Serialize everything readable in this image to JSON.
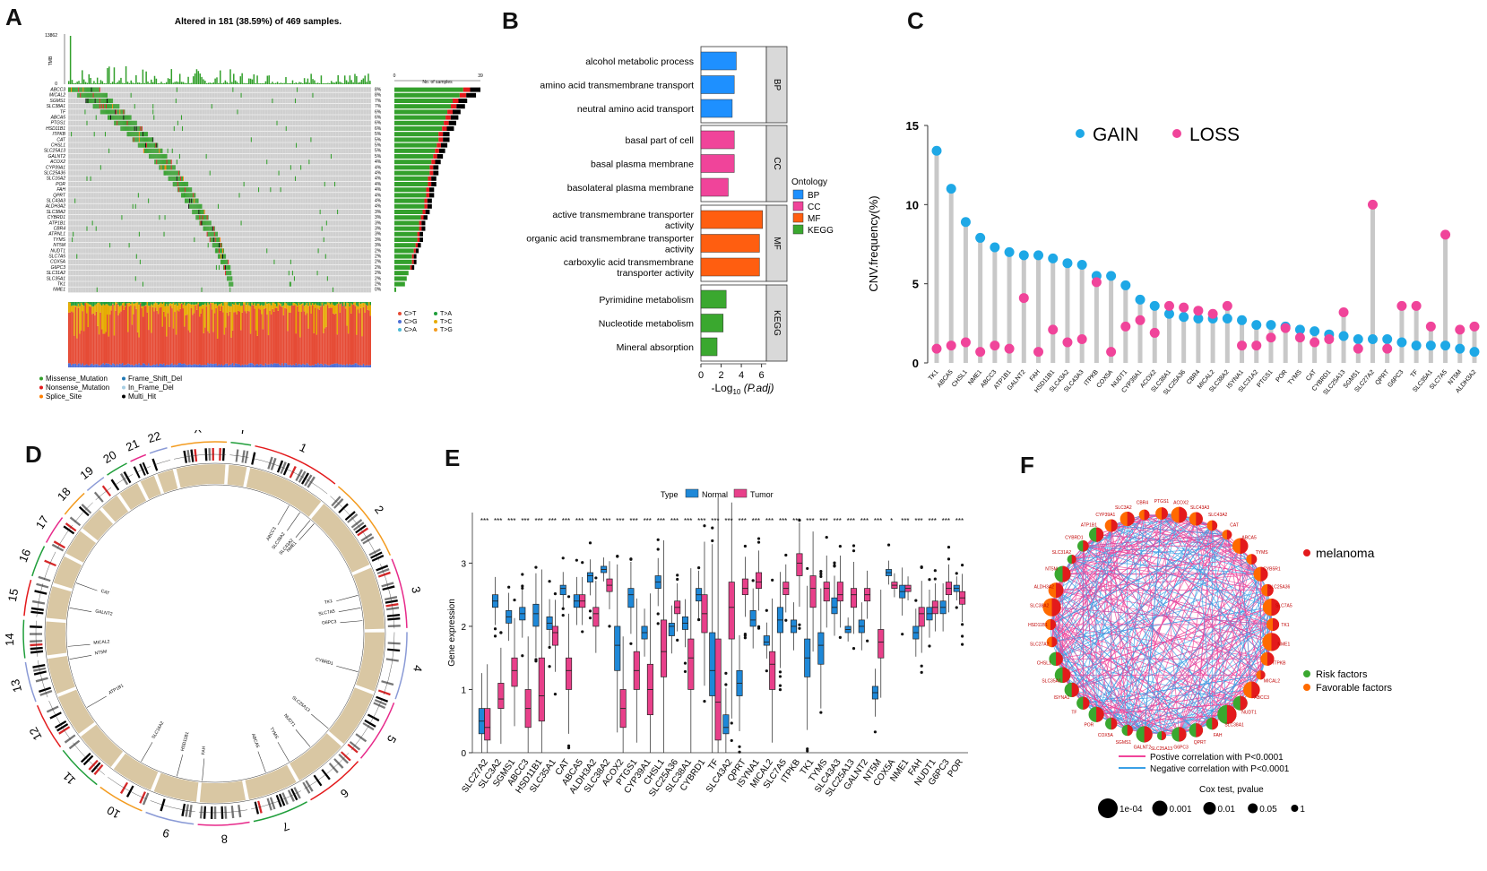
{
  "panel_labels": [
    "A",
    "B",
    "C",
    "D",
    "E",
    "F"
  ],
  "chart_data": [
    {
      "id": "A",
      "type": "oncoplot",
      "title": "Altered in 181 (38.59%) of 469 samples.",
      "tmb_label": "TMB",
      "tmb_max": "13862",
      "tmb_min": "0",
      "side_axis_label": "No. of samples",
      "side_axis_ticks": [
        "0",
        "39"
      ],
      "genes": [
        "ABCC3",
        "MICAL2",
        "SGMS1",
        "SLC38A1",
        "TF",
        "ABCA5",
        "PTGS1",
        "HSD11B1",
        "ITPKB",
        "CAT",
        "CHSL1",
        "SLC25A13",
        "GALNT2",
        "ACOX2",
        "CYP39A1",
        "SLC25A36",
        "SLC16A2",
        "POR",
        "FAH",
        "QPRT",
        "SLC43A3",
        "ALDH3A2",
        "SLC38A2",
        "CYBRD1",
        "ATP1B1",
        "CBR4",
        "ATRNL1",
        "TYMS",
        "NT5M",
        "NUDT1",
        "SLC7A5",
        "COX5A",
        "G6PC3",
        "SLC31A2",
        "SLC35A1",
        "TK1",
        "NME1"
      ],
      "percentages": [
        "8%",
        "8%",
        "7%",
        "7%",
        "6%",
        "6%",
        "6%",
        "6%",
        "5%",
        "5%",
        "5%",
        "5%",
        "5%",
        "4%",
        "4%",
        "4%",
        "4%",
        "4%",
        "4%",
        "4%",
        "4%",
        "4%",
        "3%",
        "3%",
        "3%",
        "3%",
        "3%",
        "3%",
        "3%",
        "2%",
        "2%",
        "2%",
        "2%",
        "2%",
        "2%",
        "2%",
        "0%"
      ],
      "gene_counts": [
        39,
        37,
        33,
        32,
        30,
        29,
        28,
        27,
        25,
        25,
        24,
        23,
        22,
        21,
        20,
        20,
        19,
        19,
        18,
        18,
        17,
        17,
        16,
        15,
        14,
        14,
        13,
        13,
        12,
        11,
        10,
        10,
        9,
        8,
        7,
        6,
        1
      ],
      "mutation_legend": [
        "Missense_Mutation",
        "Nonsense_Mutation",
        "Splice_Site",
        "Frame_Shift_Del",
        "In_Frame_Del",
        "Multi_Hit"
      ],
      "mutation_colors": [
        "#33a02c",
        "#e31a1c",
        "#ff7f00",
        "#1f78b4",
        "#a6cee3",
        "#000000"
      ],
      "titv_legend": [
        "C>T",
        "C>G",
        "C>A",
        "T>A",
        "T>C",
        "T>G"
      ],
      "titv_colors": [
        "#e64b35",
        "#4f6fd6",
        "#4dbbd5",
        "#1f9e3a",
        "#e6ab02",
        "#f39b1f"
      ]
    },
    {
      "id": "B",
      "type": "bar",
      "orientation": "horizontal",
      "categories": [
        "alcohol metabolic process",
        "amino acid transmembrane transport",
        "neutral amino acid transport",
        "basal part of cell",
        "basal plasma membrane",
        "basolateral plasma membrane",
        "active transmembrane transporter activity",
        "organic acid transmembrane transporter activity",
        "carboxylic acid transmembrane transporter activity",
        "Pyrimidine metabolism",
        "Nucleotide metabolism",
        "Mineral absorption"
      ],
      "category_lines": [
        [
          "alcohol metabolic process"
        ],
        [
          "amino acid transmembrane transport"
        ],
        [
          "neutral amino acid transport"
        ],
        [
          "basal part of cell"
        ],
        [
          "basal plasma membrane"
        ],
        [
          "basolateral plasma membrane"
        ],
        [
          "active transmembrane transporter",
          "activity"
        ],
        [
          "organic acid transmembrane transporter",
          "activity"
        ],
        [
          "carboxylic acid transmembrane",
          "transporter activity"
        ],
        [
          "Pyrimidine metabolism"
        ],
        [
          "Nucleotide metabolism"
        ],
        [
          "Mineral absorption"
        ]
      ],
      "values": [
        3.5,
        3.3,
        3.1,
        3.3,
        3.3,
        2.7,
        6.1,
        5.8,
        5.8,
        2.5,
        2.2,
        1.6
      ],
      "groups": [
        "BP",
        "BP",
        "BP",
        "CC",
        "CC",
        "CC",
        "MF",
        "MF",
        "MF",
        "KEGG",
        "KEGG",
        "KEGG"
      ],
      "facets": [
        "BP",
        "CC",
        "MF",
        "KEGG"
      ],
      "facet_colors": {
        "BP": "#1e90ff",
        "CC": "#f0449a",
        "MF": "#ff5e10",
        "KEGG": "#3aa82f"
      },
      "xlabel_prefix": "-Log",
      "xlabel_sub": "10",
      "xlabel_suffix": "(P.adj)",
      "xticks": [
        0,
        2,
        4,
        6
      ],
      "xlim": [
        0,
        6.3
      ],
      "legend_title": "Ontology"
    },
    {
      "id": "C",
      "type": "lollipop",
      "ylabel": "CNV.frequency(%)",
      "ylim": [
        0,
        15
      ],
      "yticks": [
        0,
        5,
        10,
        15
      ],
      "series_names": [
        "GAIN",
        "LOSS"
      ],
      "series_colors": [
        "#1ea8e6",
        "#f0449a"
      ],
      "genes": [
        "TK1",
        "ABCA5",
        "CHSL1",
        "NME1",
        "ABCC3",
        "ATP1B1",
        "GALNT2",
        "FAH",
        "HSD11B1",
        "SLC43A2",
        "SLC43A3",
        "ITPKB",
        "COX5A",
        "NUDT1",
        "CYP39A1",
        "ACOX2",
        "SLC38A1",
        "SLC25A36",
        "CBR4",
        "MICAL2",
        "SLC38A2",
        "ISYNA1",
        "SLC31A2",
        "PTGS1",
        "POR",
        "TYMS",
        "CAT",
        "CYBRD1",
        "SLC25A13",
        "SGMS1",
        "SLC27A2",
        "QPRT",
        "G6PC3",
        "TF",
        "SLC35A1",
        "SLC7A5",
        "NT5M",
        "ALDH3A2"
      ],
      "gain": [
        13.4,
        11.0,
        8.9,
        7.9,
        7.3,
        7.0,
        6.8,
        6.8,
        6.6,
        6.3,
        6.2,
        5.5,
        5.5,
        4.9,
        4.0,
        3.6,
        3.1,
        2.9,
        2.8,
        2.8,
        2.8,
        2.7,
        2.4,
        2.4,
        2.3,
        2.1,
        2.0,
        1.8,
        1.7,
        1.5,
        1.5,
        1.5,
        1.3,
        1.1,
        1.1,
        1.1,
        0.9,
        0.7
      ],
      "loss": [
        0.9,
        1.1,
        1.3,
        0.7,
        1.1,
        0.9,
        4.1,
        0.7,
        2.1,
        1.3,
        1.5,
        5.1,
        0.7,
        2.3,
        2.7,
        1.9,
        3.6,
        3.5,
        3.3,
        3.1,
        3.6,
        1.1,
        1.1,
        1.6,
        2.2,
        1.6,
        1.3,
        1.5,
        3.2,
        0.9,
        10.0,
        0.9,
        3.6,
        3.6,
        2.3,
        8.1,
        2.1,
        2.3
      ]
    },
    {
      "id": "D",
      "type": "circos",
      "chromosomes": [
        "1",
        "2",
        "3",
        "4",
        "5",
        "6",
        "7",
        "8",
        "9",
        "10",
        "11",
        "12",
        "13",
        "14",
        "15",
        "16",
        "17",
        "18",
        "19",
        "20",
        "21",
        "22",
        "X",
        "Y"
      ],
      "chrom_colors": [
        "#e31a1c",
        "#f39b1f",
        "#e7298a",
        "#8a9ad6",
        "#e7298a",
        "#e31a1c",
        "#1f9e3a",
        "#e7298a",
        "#8a9ad6",
        "#f39b1f",
        "#1f9e3a",
        "#e31a1c",
        "#8a9ad6",
        "#1f9e3a",
        "#e31a1c",
        "#1f9e3a",
        "#e7298a",
        "#f39b1f",
        "#8a9ad6",
        "#1f9e3a",
        "#e7298a",
        "#8a9ad6",
        "#f39b1f",
        "#1f9e3a"
      ],
      "gene_labels": [
        "ABCC3",
        "SLC38A2",
        "SLC43A2",
        "NME1",
        "TK1",
        "SLC7A5",
        "G6PC3",
        "CYBRD1",
        "SLC25A13",
        "NUDT1",
        "TYMS",
        "ABCA5",
        "FAH",
        "HSD11B1",
        "SLC16A2",
        "ATP1B1",
        "NT5M",
        "MICAL2",
        "GALNT2",
        "CAT"
      ]
    },
    {
      "id": "E",
      "type": "boxplot",
      "legend_title": "Type",
      "series_names": [
        "Normal",
        "Tumor"
      ],
      "series_colors": [
        "#1e88d8",
        "#e8408a"
      ],
      "ylabel": "Gene expression",
      "ylim": [
        0,
        3.8
      ],
      "yticks": [
        0,
        1,
        2,
        3
      ],
      "categories": [
        "SLC27A2",
        "SLC3A2",
        "SGMS1",
        "ABCC3",
        "HSD11B1",
        "SLC35A1",
        "CAT",
        "ABCA5",
        "ALDH3A2",
        "SLC38A2",
        "ACOX2",
        "PTGS1",
        "CYP39A1",
        "CHSL1",
        "SLC25A36",
        "SLC38A1",
        "CYBRD1",
        "TF",
        "SLC43A2",
        "QPRT",
        "ISYNA1",
        "MICAL2",
        "SLC7A5",
        "ITPKB",
        "TK1",
        "TYMS",
        "SLC43A3",
        "SLC25A13",
        "GALNT2",
        "NT5M",
        "COX5A",
        "NME1",
        "FAH",
        "NUDT1",
        "G6PC3",
        "POR"
      ],
      "normal": [
        [
          0.3,
          0.5,
          0.7
        ],
        [
          2.3,
          2.4,
          2.5
        ],
        [
          2.05,
          2.15,
          2.25
        ],
        [
          2.1,
          2.2,
          2.3
        ],
        [
          2.0,
          2.2,
          2.35
        ],
        [
          1.95,
          2.05,
          2.15
        ],
        [
          2.5,
          2.6,
          2.65
        ],
        [
          2.3,
          2.4,
          2.5
        ],
        [
          2.7,
          2.8,
          2.85
        ],
        [
          2.85,
          2.9,
          2.95
        ],
        [
          1.3,
          1.7,
          2.0
        ],
        [
          2.3,
          2.5,
          2.6
        ],
        [
          1.8,
          1.9,
          2.0
        ],
        [
          2.6,
          2.7,
          2.8
        ],
        [
          1.85,
          2.0,
          2.05
        ],
        [
          1.95,
          2.05,
          2.15
        ],
        [
          2.4,
          2.5,
          2.6
        ],
        [
          0.9,
          1.3,
          1.9
        ],
        [
          0.3,
          0.4,
          0.6
        ],
        [
          0.9,
          1.1,
          1.3
        ],
        [
          2.0,
          2.1,
          2.25
        ],
        [
          1.7,
          1.75,
          1.85
        ],
        [
          1.9,
          2.1,
          2.3
        ],
        [
          1.9,
          2.0,
          2.1
        ],
        [
          1.2,
          1.5,
          1.8
        ],
        [
          1.4,
          1.7,
          1.9
        ],
        [
          2.2,
          2.3,
          2.45
        ],
        [
          1.9,
          1.95,
          2.0
        ],
        [
          1.9,
          2.0,
          2.1
        ],
        [
          0.85,
          0.95,
          1.05
        ],
        [
          2.8,
          2.85,
          2.9
        ],
        [
          2.45,
          2.55,
          2.65
        ],
        [
          1.8,
          1.9,
          2.0
        ],
        [
          2.1,
          2.2,
          2.3
        ],
        [
          2.2,
          2.3,
          2.4
        ],
        [
          2.55,
          2.6,
          2.65
        ]
      ],
      "tumor": [
        [
          0.2,
          0.4,
          0.7
        ],
        [
          0.7,
          0.85,
          1.1
        ],
        [
          1.05,
          1.3,
          1.5
        ],
        [
          0.4,
          0.7,
          1.0
        ],
        [
          0.5,
          0.9,
          1.5
        ],
        [
          1.7,
          1.9,
          2.0
        ],
        [
          1.0,
          1.3,
          1.5
        ],
        [
          2.3,
          2.4,
          2.5
        ],
        [
          2.0,
          2.2,
          2.3
        ],
        [
          2.55,
          2.65,
          2.75
        ],
        [
          0.4,
          0.7,
          1.0
        ],
        [
          1.0,
          1.3,
          1.6
        ],
        [
          0.6,
          1.0,
          1.4
        ],
        [
          1.2,
          1.6,
          2.1
        ],
        [
          2.2,
          2.3,
          2.4
        ],
        [
          1.0,
          1.5,
          1.8
        ],
        [
          1.9,
          2.2,
          2.5
        ],
        [
          0.2,
          0.8,
          1.8
        ],
        [
          1.8,
          2.3,
          2.7
        ],
        [
          2.5,
          2.6,
          2.75
        ],
        [
          2.6,
          2.7,
          2.85
        ],
        [
          1.0,
          1.4,
          1.6
        ],
        [
          2.5,
          2.6,
          2.7
        ],
        [
          2.8,
          3.0,
          3.15
        ],
        [
          2.3,
          2.6,
          2.8
        ],
        [
          2.4,
          2.6,
          2.7
        ],
        [
          2.4,
          2.5,
          2.7
        ],
        [
          2.3,
          2.5,
          2.6
        ],
        [
          2.4,
          2.5,
          2.6
        ],
        [
          1.5,
          1.75,
          1.95
        ],
        [
          2.6,
          2.65,
          2.7
        ],
        [
          2.55,
          2.6,
          2.65
        ],
        [
          2.0,
          2.2,
          2.3
        ],
        [
          2.2,
          2.3,
          2.4
        ],
        [
          2.5,
          2.6,
          2.7
        ],
        [
          2.35,
          2.45,
          2.55
        ]
      ],
      "significance": [
        "***",
        "***",
        "***",
        "***",
        "***",
        "***",
        "***",
        "***",
        "***",
        "***",
        "***",
        "***",
        "***",
        "***",
        "***",
        "***",
        "***",
        "***",
        "***",
        "***",
        "***",
        "***",
        "***",
        "***",
        "***",
        "***",
        "***",
        "***",
        "***",
        "***",
        "*",
        "***",
        "***",
        "***",
        "***",
        "***"
      ]
    },
    {
      "id": "F",
      "type": "network",
      "cluster_label": "melanoma",
      "cluster_color": "#e31a1c",
      "factor_legend": [
        "Risk factors",
        "Favorable factors"
      ],
      "factor_colors": [
        "#3aa82f",
        "#ff6a00"
      ],
      "edge_legend": [
        "Postive correlation with P<0.0001",
        "Negative correlation with P<0.0001"
      ],
      "edge_colors": [
        "#f0449a",
        "#3aa0e6"
      ],
      "size_legend_title": "Cox test, pvalue",
      "size_legend": [
        "1e-04",
        "0.001",
        "0.01",
        "0.05",
        "1"
      ],
      "node_labels": [
        "PTGS1",
        "ACOX2",
        "SLC43A3",
        "SLC43A2",
        "CAT",
        "ABCA5",
        "TYMS",
        "CYB5R1",
        "SLC25A36",
        "SLC7A5",
        "TK1",
        "NME1",
        "ITPKB",
        "MICAL2",
        "ABCC3",
        "NUDT1",
        "SLC38A1",
        "FAH",
        "QPRT",
        "G6PC3",
        "SLC25A13",
        "GALNT2",
        "SGMS1",
        "COX5A",
        "POR",
        "TF",
        "ISYNA1",
        "SLC35A1",
        "CHSL1",
        "SLC27A2",
        "HSD11B1",
        "SLC38A2",
        "ALDH3A2",
        "NT5M",
        "SLC31A2",
        "CYBRD1",
        "ATP1B1",
        "CYP39A1",
        "SLC3A2",
        "CBR4"
      ],
      "node_factor": [
        "F",
        "F",
        "F",
        "F",
        "F",
        "F",
        "F",
        "F",
        "F",
        "F",
        "F",
        "F",
        "F",
        "F",
        "F",
        "R",
        "R",
        "R",
        "R",
        "R",
        "R",
        "R",
        "R",
        "R",
        "R",
        "R",
        "R",
        "R",
        "R",
        "F",
        "F",
        "F",
        "F",
        "R",
        "R",
        "R",
        "R",
        "F",
        "F",
        "F"
      ]
    }
  ]
}
